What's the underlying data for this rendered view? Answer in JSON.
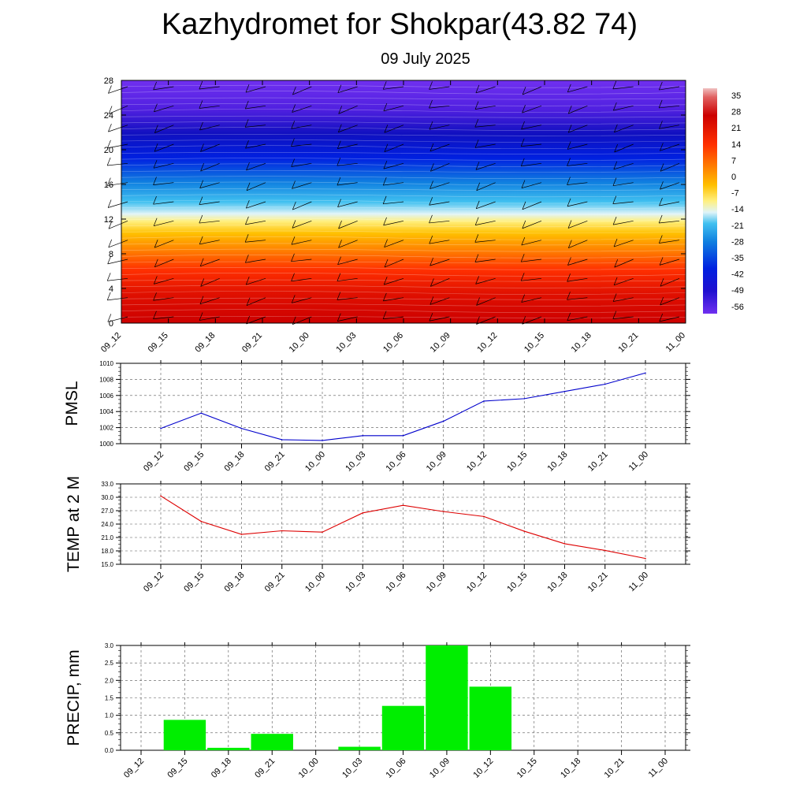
{
  "title": "Kazhydromet for Shokpar(43.82 74)",
  "subtitle": "09 July 2025",
  "time_labels": [
    "09_12",
    "09_15",
    "09_18",
    "09_21",
    "10_00",
    "10_03",
    "10_06",
    "10_09",
    "10_12",
    "10_15",
    "10_18",
    "10_21",
    "11_00"
  ],
  "chart_data": [
    {
      "type": "heatmap",
      "name": "temperature-cross-section",
      "y_ticks": [
        0,
        4,
        8,
        12,
        16,
        20,
        24,
        28
      ],
      "ylim": [
        0,
        28
      ],
      "colorbar_labels": [
        "35",
        "28",
        "21",
        "14",
        "7",
        "0",
        "-7",
        "-14",
        "-21",
        "-28",
        "-35",
        "-42",
        "-49",
        "-56"
      ],
      "colorbar_range": [
        -60,
        38
      ]
    },
    {
      "type": "line",
      "ylabel": "PMSL",
      "ylim": [
        1000,
        1010
      ],
      "y_ticks": [
        "1000",
        "1002",
        "1004",
        "1006",
        "1008",
        "1010"
      ],
      "values": [
        1001.9,
        1003.8,
        1001.9,
        1000.5,
        1000.4,
        1001.0,
        1001.0,
        1002.8,
        1005.3,
        1005.6,
        1006.5,
        1007.4,
        1008.8
      ],
      "color": "#0000cc"
    },
    {
      "type": "line",
      "ylabel": "TEMP at 2 M",
      "ylim": [
        15,
        33
      ],
      "y_ticks": [
        "15.0",
        "18.0",
        "21.0",
        "24.0",
        "27.0",
        "30.0",
        "33.0"
      ],
      "values": [
        30.3,
        24.6,
        21.7,
        22.5,
        22.2,
        26.5,
        28.2,
        26.8,
        25.7,
        22.4,
        19.6,
        18.1,
        16.3
      ],
      "color": "#dd0000"
    },
    {
      "type": "bar",
      "ylabel": "PRECIP, mm",
      "ylim": [
        0,
        3
      ],
      "y_ticks": [
        "0.0",
        "0.5",
        "1.0",
        "1.5",
        "2.0",
        "2.5",
        "3.0"
      ],
      "values": [
        0,
        0.87,
        0.07,
        0.47,
        0,
        0.1,
        1.27,
        3.0,
        1.82,
        0,
        0,
        0,
        0
      ],
      "color": "#00ee00"
    }
  ]
}
